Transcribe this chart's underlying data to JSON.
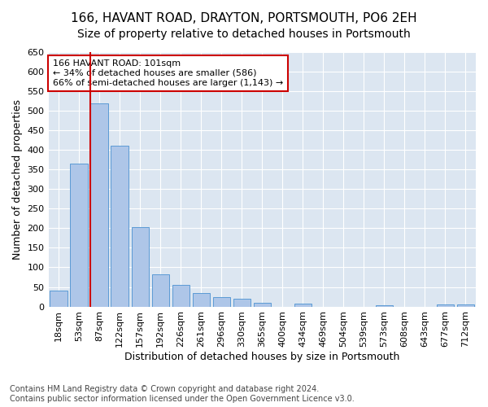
{
  "title": "166, HAVANT ROAD, DRAYTON, PORTSMOUTH, PO6 2EH",
  "subtitle": "Size of property relative to detached houses in Portsmouth",
  "xlabel": "Distribution of detached houses by size in Portsmouth",
  "ylabel": "Number of detached properties",
  "footnote1": "Contains HM Land Registry data © Crown copyright and database right 2024.",
  "footnote2": "Contains public sector information licensed under the Open Government Licence v3.0.",
  "bar_labels": [
    "18sqm",
    "53sqm",
    "87sqm",
    "122sqm",
    "157sqm",
    "192sqm",
    "226sqm",
    "261sqm",
    "296sqm",
    "330sqm",
    "365sqm",
    "400sqm",
    "434sqm",
    "469sqm",
    "504sqm",
    "539sqm",
    "573sqm",
    "608sqm",
    "643sqm",
    "677sqm",
    "712sqm"
  ],
  "bar_values": [
    40,
    365,
    520,
    410,
    203,
    83,
    55,
    35,
    25,
    20,
    10,
    0,
    8,
    0,
    0,
    0,
    4,
    0,
    0,
    5,
    5
  ],
  "bar_color": "#aec6e8",
  "bar_edge_color": "#5b9bd5",
  "property_line_bar_index": 2,
  "property_line_color": "#cc0000",
  "annotation_line1": "166 HAVANT ROAD: 101sqm",
  "annotation_line2": "← 34% of detached houses are smaller (586)",
  "annotation_line3": "66% of semi-detached houses are larger (1,143) →",
  "annotation_box_edge_color": "#cc0000",
  "ylim": [
    0,
    650
  ],
  "yticks": [
    0,
    50,
    100,
    150,
    200,
    250,
    300,
    350,
    400,
    450,
    500,
    550,
    600,
    650
  ],
  "plot_bg_color": "#dce6f1",
  "fig_bg_color": "#ffffff",
  "title_fontsize": 11,
  "subtitle_fontsize": 10,
  "axis_label_fontsize": 9,
  "tick_fontsize": 8,
  "footnote_fontsize": 7
}
